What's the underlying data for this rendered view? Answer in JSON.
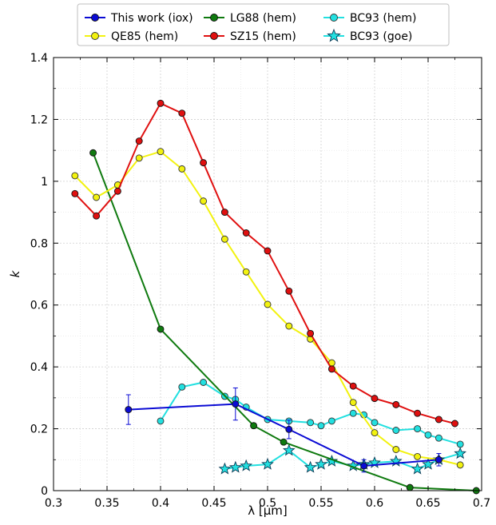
{
  "chart_data": {
    "type": "line",
    "xlabel": "λ [µm]",
    "ylabel": "k",
    "xlim": [
      0.3,
      0.7
    ],
    "ylim": [
      0,
      1.4
    ],
    "x_ticks": [
      "0.3",
      "0.35",
      "0.4",
      "0.45",
      "0.5",
      "0.55",
      "0.6",
      "0.65",
      "0.7"
    ],
    "y_ticks": [
      "0",
      "0.2",
      "0.4",
      "0.6",
      "0.8",
      "1",
      "1.2",
      "1.4"
    ],
    "grid": true,
    "legend_position": "top, outside plot",
    "series": [
      {
        "name": "This work (iox)",
        "color": "#0b0bd4",
        "marker": "circle-filled",
        "x": [
          0.37,
          0.47,
          0.52,
          0.59,
          0.66
        ],
        "y": [
          0.262,
          0.28,
          0.198,
          0.08,
          0.1
        ],
        "yerr": [
          0.048,
          0.052,
          0.03,
          0.02,
          0.02
        ]
      },
      {
        "name": "QE85 (hem)",
        "color": "#f2f20f",
        "marker": "circle",
        "x": [
          0.32,
          0.34,
          0.36,
          0.38,
          0.4,
          0.42,
          0.44,
          0.46,
          0.48,
          0.5,
          0.52,
          0.54,
          0.56,
          0.58,
          0.6,
          0.62,
          0.64,
          0.66,
          0.68
        ],
        "y": [
          1.018,
          0.948,
          0.988,
          1.075,
          1.096,
          1.04,
          0.936,
          0.813,
          0.707,
          0.602,
          0.532,
          0.49,
          0.413,
          0.285,
          0.187,
          0.133,
          0.11,
          0.1,
          0.083
        ]
      },
      {
        "name": "LG88 (hem)",
        "color": "#0f7a0f",
        "marker": "circle-filled",
        "x": [
          0.337,
          0.4,
          0.487,
          0.515,
          0.633,
          0.695
        ],
        "y": [
          1.092,
          0.522,
          0.21,
          0.157,
          0.01,
          0.0
        ]
      },
      {
        "name": "SZ15 (hem)",
        "color": "#e01010",
        "marker": "circle-filled",
        "x": [
          0.32,
          0.34,
          0.36,
          0.38,
          0.4,
          0.42,
          0.44,
          0.46,
          0.48,
          0.5,
          0.52,
          0.54,
          0.56,
          0.58,
          0.6,
          0.62,
          0.64,
          0.66,
          0.675
        ],
        "y": [
          0.96,
          0.888,
          0.968,
          1.13,
          1.252,
          1.22,
          1.06,
          0.9,
          0.833,
          0.775,
          0.645,
          0.508,
          0.393,
          0.338,
          0.298,
          0.278,
          0.25,
          0.23,
          0.217
        ]
      },
      {
        "name": "BC93 (hem)",
        "color": "#22e0e0",
        "marker": "circle",
        "x": [
          0.4,
          0.42,
          0.44,
          0.46,
          0.47,
          0.48,
          0.5,
          0.52,
          0.54,
          0.55,
          0.56,
          0.58,
          0.59,
          0.6,
          0.62,
          0.64,
          0.65,
          0.66,
          0.68
        ],
        "y": [
          0.225,
          0.335,
          0.35,
          0.305,
          0.295,
          0.27,
          0.23,
          0.225,
          0.22,
          0.21,
          0.225,
          0.25,
          0.245,
          0.22,
          0.195,
          0.2,
          0.18,
          0.17,
          0.15
        ]
      },
      {
        "name": "BC93 (goe)",
        "color": "#22e0e0",
        "marker": "star",
        "x": [
          0.46,
          0.47,
          0.48,
          0.5,
          0.52,
          0.54,
          0.55,
          0.56,
          0.58,
          0.59,
          0.6,
          0.62,
          0.64,
          0.65,
          0.66,
          0.68
        ],
        "y": [
          0.07,
          0.075,
          0.08,
          0.085,
          0.13,
          0.075,
          0.085,
          0.095,
          0.08,
          0.085,
          0.09,
          0.095,
          0.07,
          0.085,
          0.1,
          0.12
        ]
      }
    ]
  }
}
